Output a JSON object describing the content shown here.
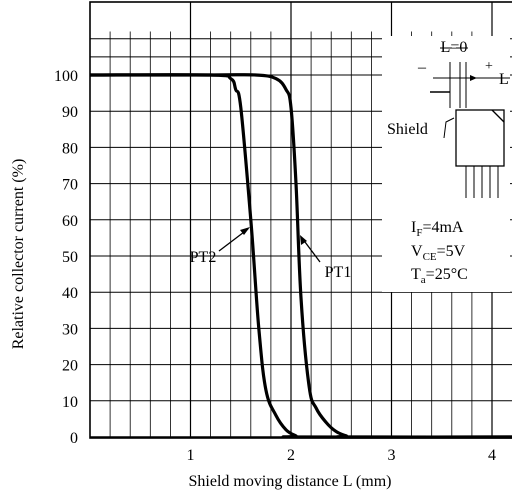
{
  "chart_data": {
    "type": "line",
    "xlabel": "Shield moving distance L (mm)",
    "ylabel": "Relative collector current (%)",
    "xlim": [
      0,
      4.2
    ],
    "ylim": [
      0,
      112
    ],
    "x_ticks": [
      1,
      2,
      3,
      4
    ],
    "y_ticks": [
      0,
      10,
      20,
      30,
      40,
      50,
      60,
      70,
      80,
      90,
      100
    ],
    "grid": true,
    "series": [
      {
        "name": "PT1",
        "x": [
          0,
          1.2,
          1.65,
          1.85,
          1.95,
          2.0,
          2.05,
          2.1,
          2.18,
          2.25,
          2.35,
          2.45,
          2.55,
          2.6,
          4.2
        ],
        "y": [
          100,
          100,
          100,
          99,
          96,
          91,
          70,
          38,
          14,
          8,
          4,
          1.5,
          0.3,
          0,
          0
        ]
      },
      {
        "name": "PT2",
        "x": [
          0,
          1.2,
          1.4,
          1.45,
          1.5,
          1.6,
          1.68,
          1.75,
          1.85,
          1.95,
          2.05,
          2.1,
          4.2
        ],
        "y": [
          100,
          100,
          99,
          96,
          91,
          60,
          30,
          13,
          6,
          2,
          0.3,
          0,
          0
        ]
      }
    ],
    "annotations": {
      "conditions": [
        {
          "sym": "I",
          "sub": "F",
          "val": "=4mA"
        },
        {
          "sym": "V",
          "sub": "CE",
          "val": "=5V"
        },
        {
          "sym": "T",
          "sub": "a",
          "val": "=25°C"
        }
      ],
      "inset": {
        "l0": "L=0",
        "minus": "–",
        "plus": "+",
        "l": "L",
        "shield": "Shield"
      }
    }
  }
}
